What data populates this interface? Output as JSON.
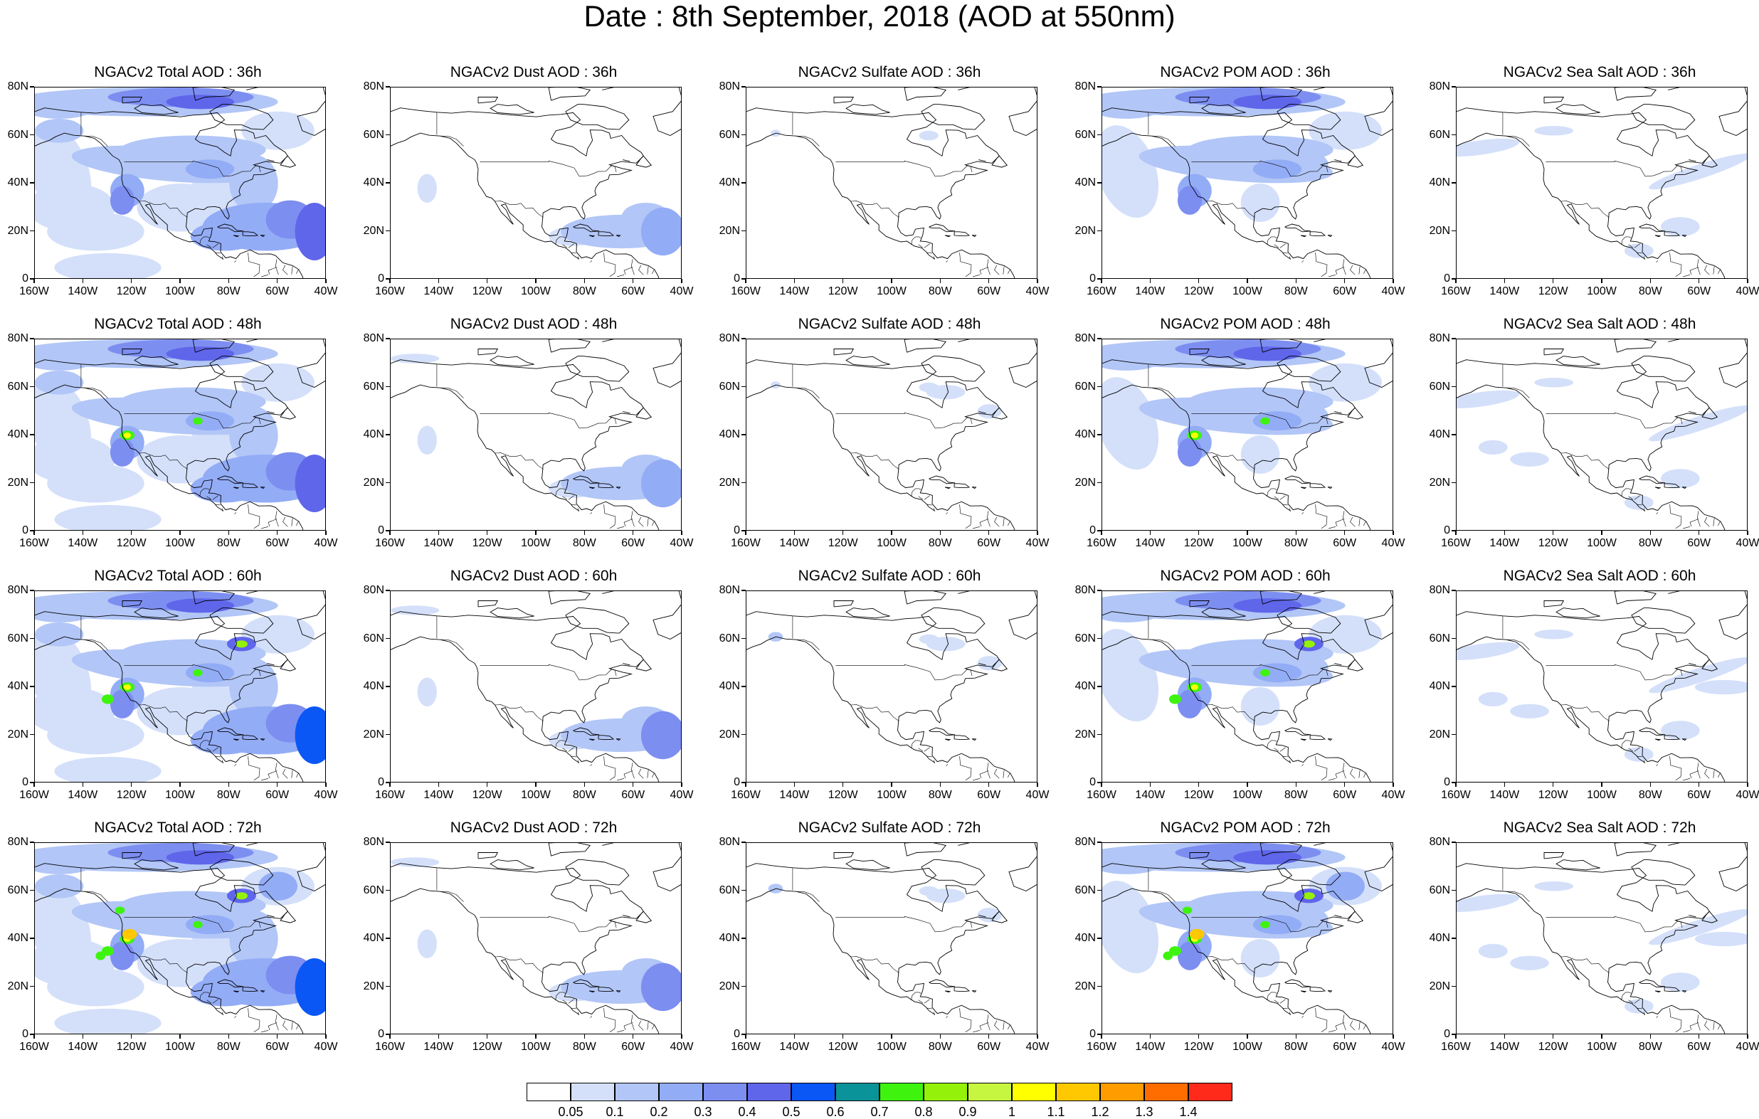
{
  "title": "Date : 8th September, 2018 (AOD at 550nm)",
  "lat_ticks": [
    "80N",
    "60N",
    "40N",
    "20N",
    "0"
  ],
  "lon_ticks": [
    "160W",
    "140W",
    "120W",
    "100W",
    "80W",
    "60W",
    "40W"
  ],
  "panels": [
    [
      {
        "title": "NGACv2 Total AOD : 36h",
        "field": "total",
        "lead": 36
      },
      {
        "title": "NGACv2 Dust AOD : 36h",
        "field": "dust",
        "lead": 36
      },
      {
        "title": "NGACv2 Sulfate AOD : 36h",
        "field": "sulfate",
        "lead": 36
      },
      {
        "title": "NGACv2 POM AOD : 36h",
        "field": "pom",
        "lead": 36
      },
      {
        "title": "NGACv2 Sea Salt AOD : 36h",
        "field": "seasalt",
        "lead": 36
      }
    ],
    [
      {
        "title": "NGACv2 Total AOD : 48h",
        "field": "total",
        "lead": 48
      },
      {
        "title": "NGACv2 Dust AOD : 48h",
        "field": "dust",
        "lead": 48
      },
      {
        "title": "NGACv2 Sulfate AOD : 48h",
        "field": "sulfate",
        "lead": 48
      },
      {
        "title": "NGACv2 POM AOD : 48h",
        "field": "pom",
        "lead": 48
      },
      {
        "title": "NGACv2 Sea Salt AOD : 48h",
        "field": "seasalt",
        "lead": 48
      }
    ],
    [
      {
        "title": "NGACv2 Total AOD : 60h",
        "field": "total",
        "lead": 60
      },
      {
        "title": "NGACv2 Dust AOD : 60h",
        "field": "dust",
        "lead": 60
      },
      {
        "title": "NGACv2 Sulfate AOD : 60h",
        "field": "sulfate",
        "lead": 60
      },
      {
        "title": "NGACv2 POM AOD : 60h",
        "field": "pom",
        "lead": 60
      },
      {
        "title": "NGACv2 Sea Salt AOD : 60h",
        "field": "seasalt",
        "lead": 60
      }
    ],
    [
      {
        "title": "NGACv2 Total AOD : 72h",
        "field": "total",
        "lead": 72
      },
      {
        "title": "NGACv2 Dust AOD : 72h",
        "field": "dust",
        "lead": 72
      },
      {
        "title": "NGACv2 Sulfate AOD : 72h",
        "field": "sulfate",
        "lead": 72
      },
      {
        "title": "NGACv2 POM AOD : 72h",
        "field": "pom",
        "lead": 72
      },
      {
        "title": "NGACv2 Sea Salt  AOD : 72h",
        "field": "seasalt",
        "lead": 72
      }
    ]
  ],
  "colorbar": {
    "colors": [
      "#ffffff",
      "#d4e0fa",
      "#b2c6f7",
      "#93acf6",
      "#7d8ef1",
      "#5f66ea",
      "#0a57f5",
      "#0a9398",
      "#3ef40f",
      "#94f20a",
      "#c6f63f",
      "#ffff00",
      "#ffc800",
      "#ff9c00",
      "#ff6d00",
      "#ff2a1a"
    ],
    "labels": [
      "0.05",
      "0.1",
      "0.2",
      "0.3",
      "0.4",
      "0.5",
      "0.6",
      "0.7",
      "0.8",
      "0.9",
      "1",
      "1.1",
      "1.2",
      "1.3",
      "1.4"
    ]
  }
}
